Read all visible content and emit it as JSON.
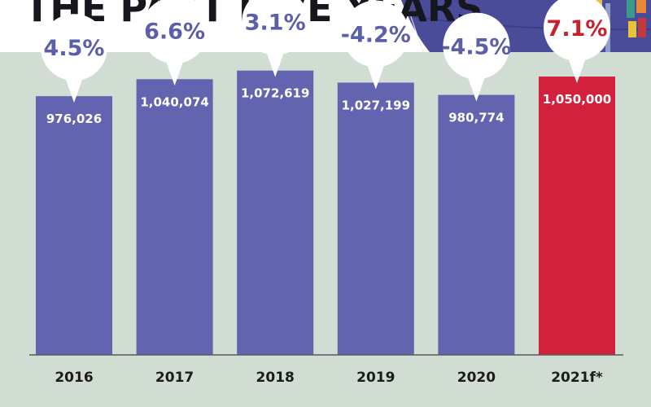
{
  "title": "THE PAST FIVE YEARS",
  "colors": {
    "background": "#d1ddd2",
    "bar": "#6264b0",
    "bar_highlight": "#d2213c",
    "pct_text": "#5b5ea8",
    "pct_text_highlight": "#c8202f",
    "illustration": "#4a4c9a"
  },
  "chart_data": {
    "type": "bar",
    "title": "THE PAST FIVE YEARS",
    "categories": [
      "2016",
      "2017",
      "2018",
      "2019",
      "2020",
      "2021f*"
    ],
    "values": [
      976026,
      1040074,
      1072619,
      1027199,
      980774,
      1050000
    ],
    "value_labels": [
      "976,026",
      "1,040,074",
      "1,072,619",
      "1,027,199",
      "980,774",
      "1,050,000"
    ],
    "change_labels": [
      "4.5%",
      "6.6%",
      "3.1%",
      "-4.2%",
      "-4.5%",
      "7.1%"
    ],
    "highlight_index": 5,
    "xlabel": "",
    "ylabel": "",
    "ylim": [
      0,
      1130000
    ],
    "grid": false,
    "legend": "none"
  }
}
